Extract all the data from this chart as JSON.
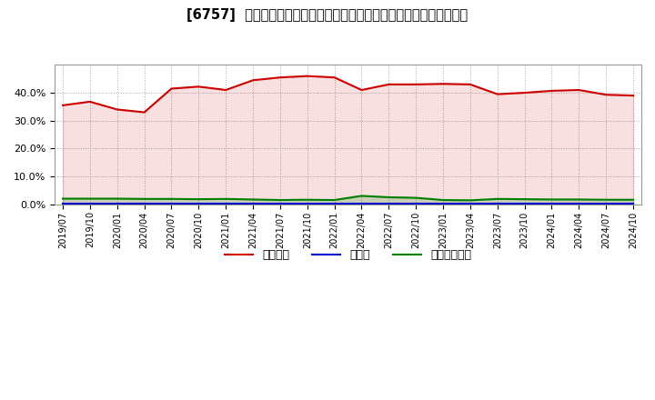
{
  "title": "[6757]  自己資本、のれん、繰延税金資産の総資産に対する比率の推移",
  "x_labels": [
    "2019/07",
    "2019/10",
    "2020/01",
    "2020/04",
    "2020/07",
    "2020/10",
    "2021/01",
    "2021/04",
    "2021/07",
    "2021/10",
    "2022/01",
    "2022/04",
    "2022/07",
    "2022/10",
    "2023/01",
    "2023/04",
    "2023/07",
    "2023/10",
    "2024/01",
    "2024/04",
    "2024/07",
    "2024/10"
  ],
  "equity": [
    35.5,
    36.8,
    34.0,
    33.0,
    41.5,
    42.2,
    41.0,
    44.5,
    45.5,
    46.0,
    45.5,
    41.0,
    43.0,
    43.0,
    43.2,
    43.0,
    39.5,
    40.0,
    40.7,
    41.0,
    39.3,
    39.0
  ],
  "goodwill": [
    0.2,
    0.2,
    0.2,
    0.2,
    0.2,
    0.2,
    0.2,
    0.2,
    0.2,
    0.2,
    0.2,
    0.2,
    0.2,
    0.2,
    0.2,
    0.2,
    0.2,
    0.2,
    0.2,
    0.2,
    0.2,
    0.2
  ],
  "deferred_tax": [
    2.0,
    2.0,
    2.0,
    1.9,
    1.9,
    1.8,
    1.9,
    1.7,
    1.5,
    1.6,
    1.5,
    3.0,
    2.5,
    2.3,
    1.5,
    1.4,
    1.9,
    1.8,
    1.7,
    1.7,
    1.6,
    1.6
  ],
  "equity_color": "#cc0000",
  "goodwill_color": "#0000cc",
  "deferred_tax_color": "#008000",
  "legend_labels": [
    "自己資本",
    "のれん",
    "繰延税金資産"
  ],
  "ylim": [
    0.0,
    50.0
  ],
  "yticks": [
    0.0,
    10.0,
    20.0,
    30.0,
    40.0
  ],
  "background_color": "#ffffff",
  "plot_bg_color": "#ffffff",
  "grid_color": "#aaaaaa"
}
